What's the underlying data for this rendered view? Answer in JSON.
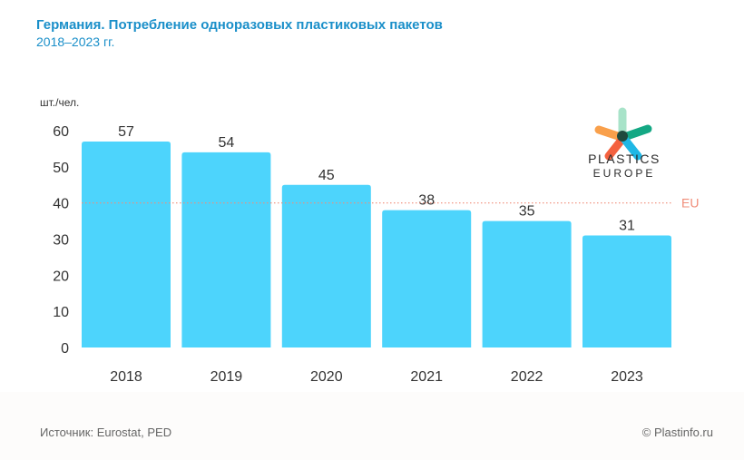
{
  "header": {
    "title": "Германия. Потребление одноразовых пластиковых пакетов",
    "subtitle": "2018–2023 гг."
  },
  "footer": {
    "source": "Источник: Eurostat, PED",
    "copyright": "© Plastinfo.ru"
  },
  "logo": {
    "line1": "PLASTICS",
    "line2": "EUROPE"
  },
  "chart_data": {
    "type": "bar",
    "title": "Германия. Потребление одноразовых пластиковых пакетов",
    "subtitle": "2018–2023 гг.",
    "ylabel": "шт./чел.",
    "categories": [
      "2018",
      "2019",
      "2020",
      "2021",
      "2022",
      "2023"
    ],
    "values": [
      57,
      54,
      45,
      38,
      35,
      31
    ],
    "ylim": [
      0,
      60
    ],
    "yticks": [
      0,
      10,
      20,
      30,
      40,
      50,
      60
    ],
    "grid": false,
    "reference_line": {
      "label": "EU",
      "value": 40,
      "color": "#f08c78"
    },
    "bar_color": "#4dd4fc"
  }
}
